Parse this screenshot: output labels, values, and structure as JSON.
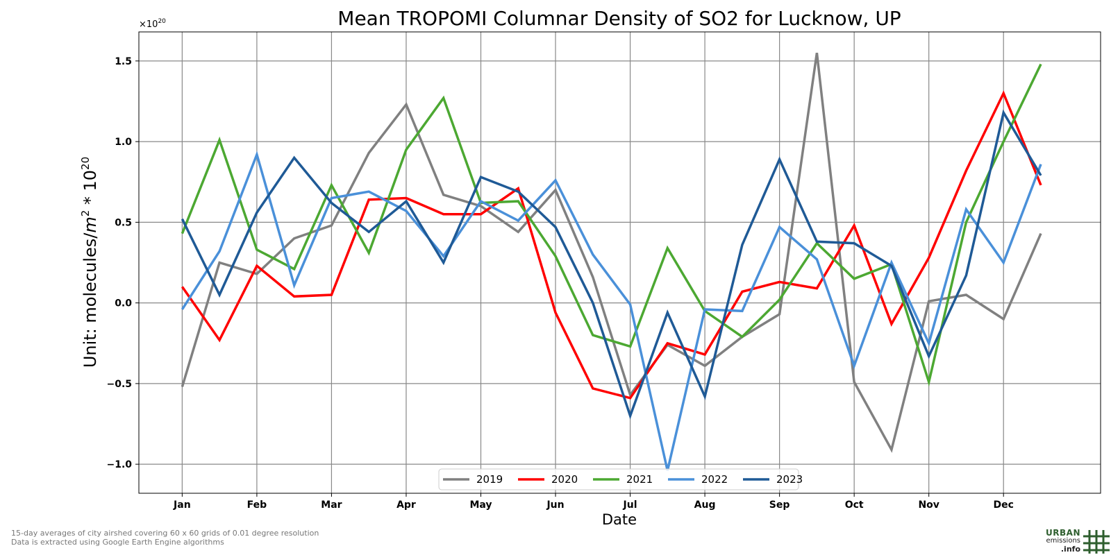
{
  "chart_data": {
    "type": "line",
    "title": "Mean TROPOMI Columnar Density of SO2 for Lucknow, UP",
    "xlabel": "Date",
    "ylabel_prefix": "Unit: molecules/",
    "ylabel_m": "m",
    "ylabel_sup2": "2",
    "ylabel_mid": " * 10",
    "ylabel_sup20": "20",
    "offset_text_base": "×10",
    "offset_text_exp": "20",
    "ylim": [
      -1.18,
      1.68
    ],
    "yticks": [
      -1.0,
      -0.5,
      0.0,
      0.5,
      1.0,
      1.5
    ],
    "ytick_labels": [
      "−1.0",
      "−0.5",
      "0.0",
      "0.5",
      "1.0",
      "1.5"
    ],
    "xlim": [
      -0.58,
      12.3
    ],
    "xticks": [
      0,
      1,
      2,
      3,
      4,
      5,
      6,
      7,
      8,
      9,
      10,
      11
    ],
    "xtick_labels": [
      "Jan",
      "Feb",
      "Mar",
      "Apr",
      "May",
      "Jun",
      "Jul",
      "Aug",
      "Sep",
      "Oct",
      "Nov",
      "Dec"
    ],
    "x": [
      0,
      0.5,
      1,
      1.5,
      2,
      2.5,
      3,
      3.5,
      4,
      4.5,
      5,
      5.5,
      6,
      6.5,
      7,
      7.5,
      8,
      8.5,
      9,
      9.5,
      10,
      10.5,
      11,
      11.5
    ],
    "grid": true,
    "legend_position": "lower-center",
    "series": [
      {
        "name": "2019",
        "color": "#808080",
        "values": [
          -0.52,
          0.25,
          0.18,
          0.4,
          0.48,
          0.93,
          1.23,
          0.67,
          0.6,
          0.44,
          0.7,
          0.16,
          -0.57,
          -0.26,
          -0.39,
          -0.21,
          -0.07,
          1.55,
          -0.49,
          -0.91,
          0.01,
          0.05,
          -0.1,
          0.43
        ]
      },
      {
        "name": "2020",
        "color": "#ff0000",
        "values": [
          0.1,
          -0.23,
          0.23,
          0.04,
          0.05,
          0.64,
          0.65,
          0.55,
          0.55,
          0.71,
          -0.06,
          -0.53,
          -0.59,
          -0.25,
          -0.32,
          0.07,
          0.13,
          0.09,
          0.48,
          -0.13,
          0.28,
          0.82,
          1.3,
          0.73
        ]
      },
      {
        "name": "2021",
        "color": "#4ca832",
        "values": [
          0.43,
          1.01,
          0.33,
          0.21,
          0.73,
          0.31,
          0.95,
          1.27,
          0.62,
          0.63,
          0.29,
          -0.2,
          -0.27,
          0.34,
          -0.05,
          -0.21,
          0.02,
          0.37,
          0.15,
          0.24,
          -0.49,
          0.5,
          1.0,
          1.48
        ]
      },
      {
        "name": "2022",
        "color": "#4a90d9",
        "values": [
          -0.04,
          0.32,
          0.92,
          0.11,
          0.65,
          0.69,
          0.57,
          0.29,
          0.63,
          0.51,
          0.76,
          0.3,
          -0.01,
          -1.04,
          -0.04,
          -0.05,
          0.47,
          0.27,
          -0.39,
          0.25,
          -0.25,
          0.58,
          0.25,
          0.86
        ]
      },
      {
        "name": "2023",
        "color": "#1f5a96",
        "values": [
          0.52,
          0.05,
          0.56,
          0.9,
          0.62,
          0.44,
          0.63,
          0.25,
          0.78,
          0.69,
          0.47,
          0.0,
          -0.7,
          -0.06,
          -0.58,
          0.36,
          0.89,
          0.38,
          0.37,
          0.23,
          -0.33,
          0.17,
          1.18,
          0.79
        ]
      }
    ]
  },
  "footnote": {
    "line1": "15-day averages of city airshed covering 60 x 60 grids of 0.01 degree resolution",
    "line2": "Data is extracted using Google Earth Engine algorithms"
  },
  "logo": {
    "line1": "URBAN",
    "line2": "emissions",
    "line3": ".info",
    "color": "#2e5e2e"
  }
}
